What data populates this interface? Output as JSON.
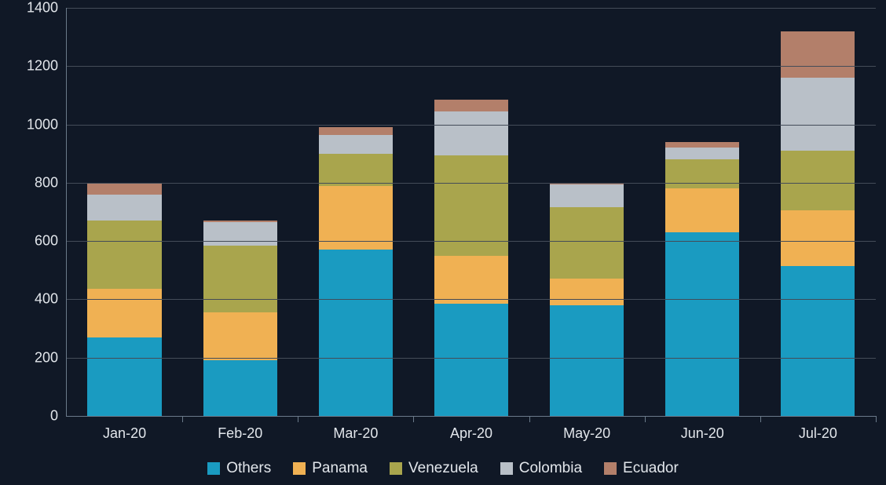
{
  "chart": {
    "type": "stacked-bar",
    "background_color": "#101826",
    "grid_color": "#444c58",
    "axis_color": "#6b7a8a",
    "text_color": "#e2e6eb",
    "label_fontsize": 18,
    "legend_fontsize": 19,
    "ylim": [
      0,
      1400
    ],
    "ytick_step": 200,
    "yticks": [
      0,
      200,
      400,
      600,
      800,
      1000,
      1200,
      1400
    ],
    "bar_width_pct": 64,
    "categories": [
      "Jan-20",
      "Feb-20",
      "Mar-20",
      "Apr-20",
      "May-20",
      "Jun-20",
      "Jul-20"
    ],
    "series": [
      {
        "name": "Others",
        "color": "#1a9bc1",
        "values": [
          270,
          190,
          570,
          385,
          380,
          630,
          515
        ]
      },
      {
        "name": "Panama",
        "color": "#f0b153",
        "values": [
          165,
          165,
          220,
          165,
          90,
          150,
          190
        ]
      },
      {
        "name": "Venezuela",
        "color": "#a9a54d",
        "values": [
          235,
          230,
          110,
          345,
          245,
          100,
          205
        ]
      },
      {
        "name": "Colombia",
        "color": "#b9c0c8",
        "values": [
          90,
          80,
          65,
          150,
          80,
          40,
          250
        ]
      },
      {
        "name": "Ecuador",
        "color": "#b37f6a",
        "values": [
          40,
          5,
          25,
          40,
          5,
          20,
          160
        ]
      }
    ]
  }
}
